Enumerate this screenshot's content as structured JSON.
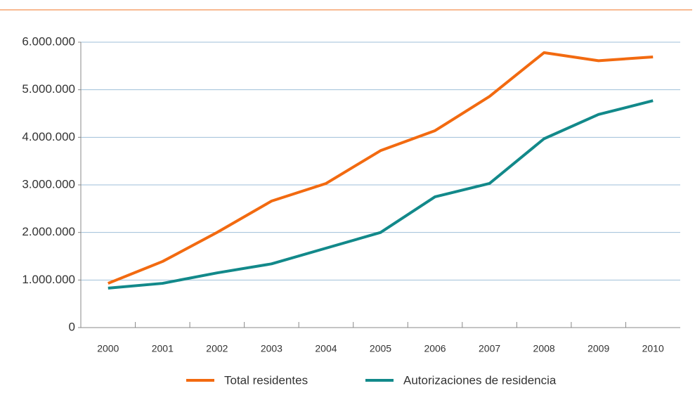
{
  "chart_data": {
    "type": "line",
    "categories": [
      "2000",
      "2001",
      "2002",
      "2003",
      "2004",
      "2005",
      "2006",
      "2007",
      "2008",
      "2009",
      "2010"
    ],
    "series": [
      {
        "name": "Total residentes",
        "color": "#f26a10",
        "values": [
          930000,
          1390000,
          2000000,
          2660000,
          3030000,
          3720000,
          4140000,
          4860000,
          5780000,
          5610000,
          5690000
        ]
      },
      {
        "name": "Autorizaciones de residencia",
        "color": "#12898a",
        "values": [
          830000,
          930000,
          1150000,
          1340000,
          1670000,
          2000000,
          2750000,
          3030000,
          3970000,
          4480000,
          4770000
        ]
      }
    ],
    "ylim": [
      0,
      6000000
    ],
    "yticks": [
      0,
      {
        "value": 1000000,
        "label": "1.000.000"
      },
      {
        "value": 2000000,
        "label": "2.000.000"
      },
      {
        "value": 3000000,
        "label": "3.000.000"
      },
      {
        "value": 4000000,
        "label": "4.000.000"
      },
      {
        "value": 5000000,
        "label": "5.000.000"
      },
      {
        "value": 6000000,
        "label": "6.000.000"
      }
    ],
    "grid": true,
    "legend": "bottom"
  }
}
